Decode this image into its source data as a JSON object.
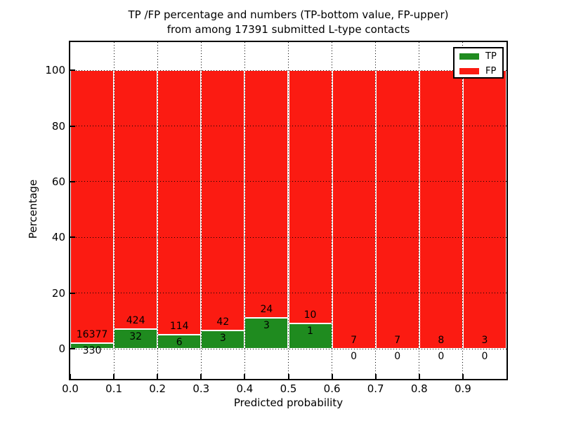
{
  "title_line1": "TP /FP percentage and numbers (TP-bottom value, FP-upper)",
  "title_line2": "from among 17391 submitted L-type contacts",
  "colors": {
    "tp": "#1f8b1f",
    "fp": "#fb1b12"
  },
  "legend": {
    "tp_label": "TP",
    "fp_label": "FP"
  },
  "chart_data": {
    "type": "bar",
    "stacked": true,
    "title": "TP /FP percentage and numbers (TP-bottom value, FP-upper) from among 17391 submitted L-type contacts",
    "xlabel": "Predicted probability",
    "ylabel": "Percentage",
    "total_contacts": 17391,
    "xlim": [
      0.0,
      1.0
    ],
    "ylim": [
      -10.8,
      110.1
    ],
    "grid": true,
    "legend_position": "upper right",
    "series_note": "Each 0.1-wide bin is normalized to 100%: green bottom = TP%, red top = FP%. Labels show raw counts (TP lower label, FP upper label).",
    "xticks": [
      {
        "v": 0.0,
        "label": "0.0"
      },
      {
        "v": 0.1,
        "label": "0.1"
      },
      {
        "v": 0.2,
        "label": "0.2"
      },
      {
        "v": 0.3,
        "label": "0.3"
      },
      {
        "v": 0.4,
        "label": "0.4"
      },
      {
        "v": 0.5,
        "label": "0.5"
      },
      {
        "v": 0.6,
        "label": "0.6"
      },
      {
        "v": 0.7,
        "label": "0.7"
      },
      {
        "v": 0.8,
        "label": "0.8"
      },
      {
        "v": 0.9,
        "label": "0.9"
      }
    ],
    "yticks": [
      {
        "v": 0,
        "label": "0"
      },
      {
        "v": 20,
        "label": "20"
      },
      {
        "v": 40,
        "label": "40"
      },
      {
        "v": 60,
        "label": "60"
      },
      {
        "v": 80,
        "label": "80"
      },
      {
        "v": 100,
        "label": "100"
      }
    ],
    "bins": [
      {
        "x0": 0.0,
        "x1": 0.1,
        "tp": 330,
        "fp": 16377
      },
      {
        "x0": 0.1,
        "x1": 0.2,
        "tp": 32,
        "fp": 424
      },
      {
        "x0": 0.2,
        "x1": 0.3,
        "tp": 6,
        "fp": 114
      },
      {
        "x0": 0.3,
        "x1": 0.4,
        "tp": 3,
        "fp": 42
      },
      {
        "x0": 0.4,
        "x1": 0.5,
        "tp": 3,
        "fp": 24
      },
      {
        "x0": 0.5,
        "x1": 0.6,
        "tp": 1,
        "fp": 10
      },
      {
        "x0": 0.6,
        "x1": 0.7,
        "tp": 0,
        "fp": 7
      },
      {
        "x0": 0.7,
        "x1": 0.8,
        "tp": 0,
        "fp": 7
      },
      {
        "x0": 0.8,
        "x1": 0.9,
        "tp": 0,
        "fp": 8
      },
      {
        "x0": 0.9,
        "x1": 1.0,
        "tp": 0,
        "fp": 3
      }
    ]
  }
}
